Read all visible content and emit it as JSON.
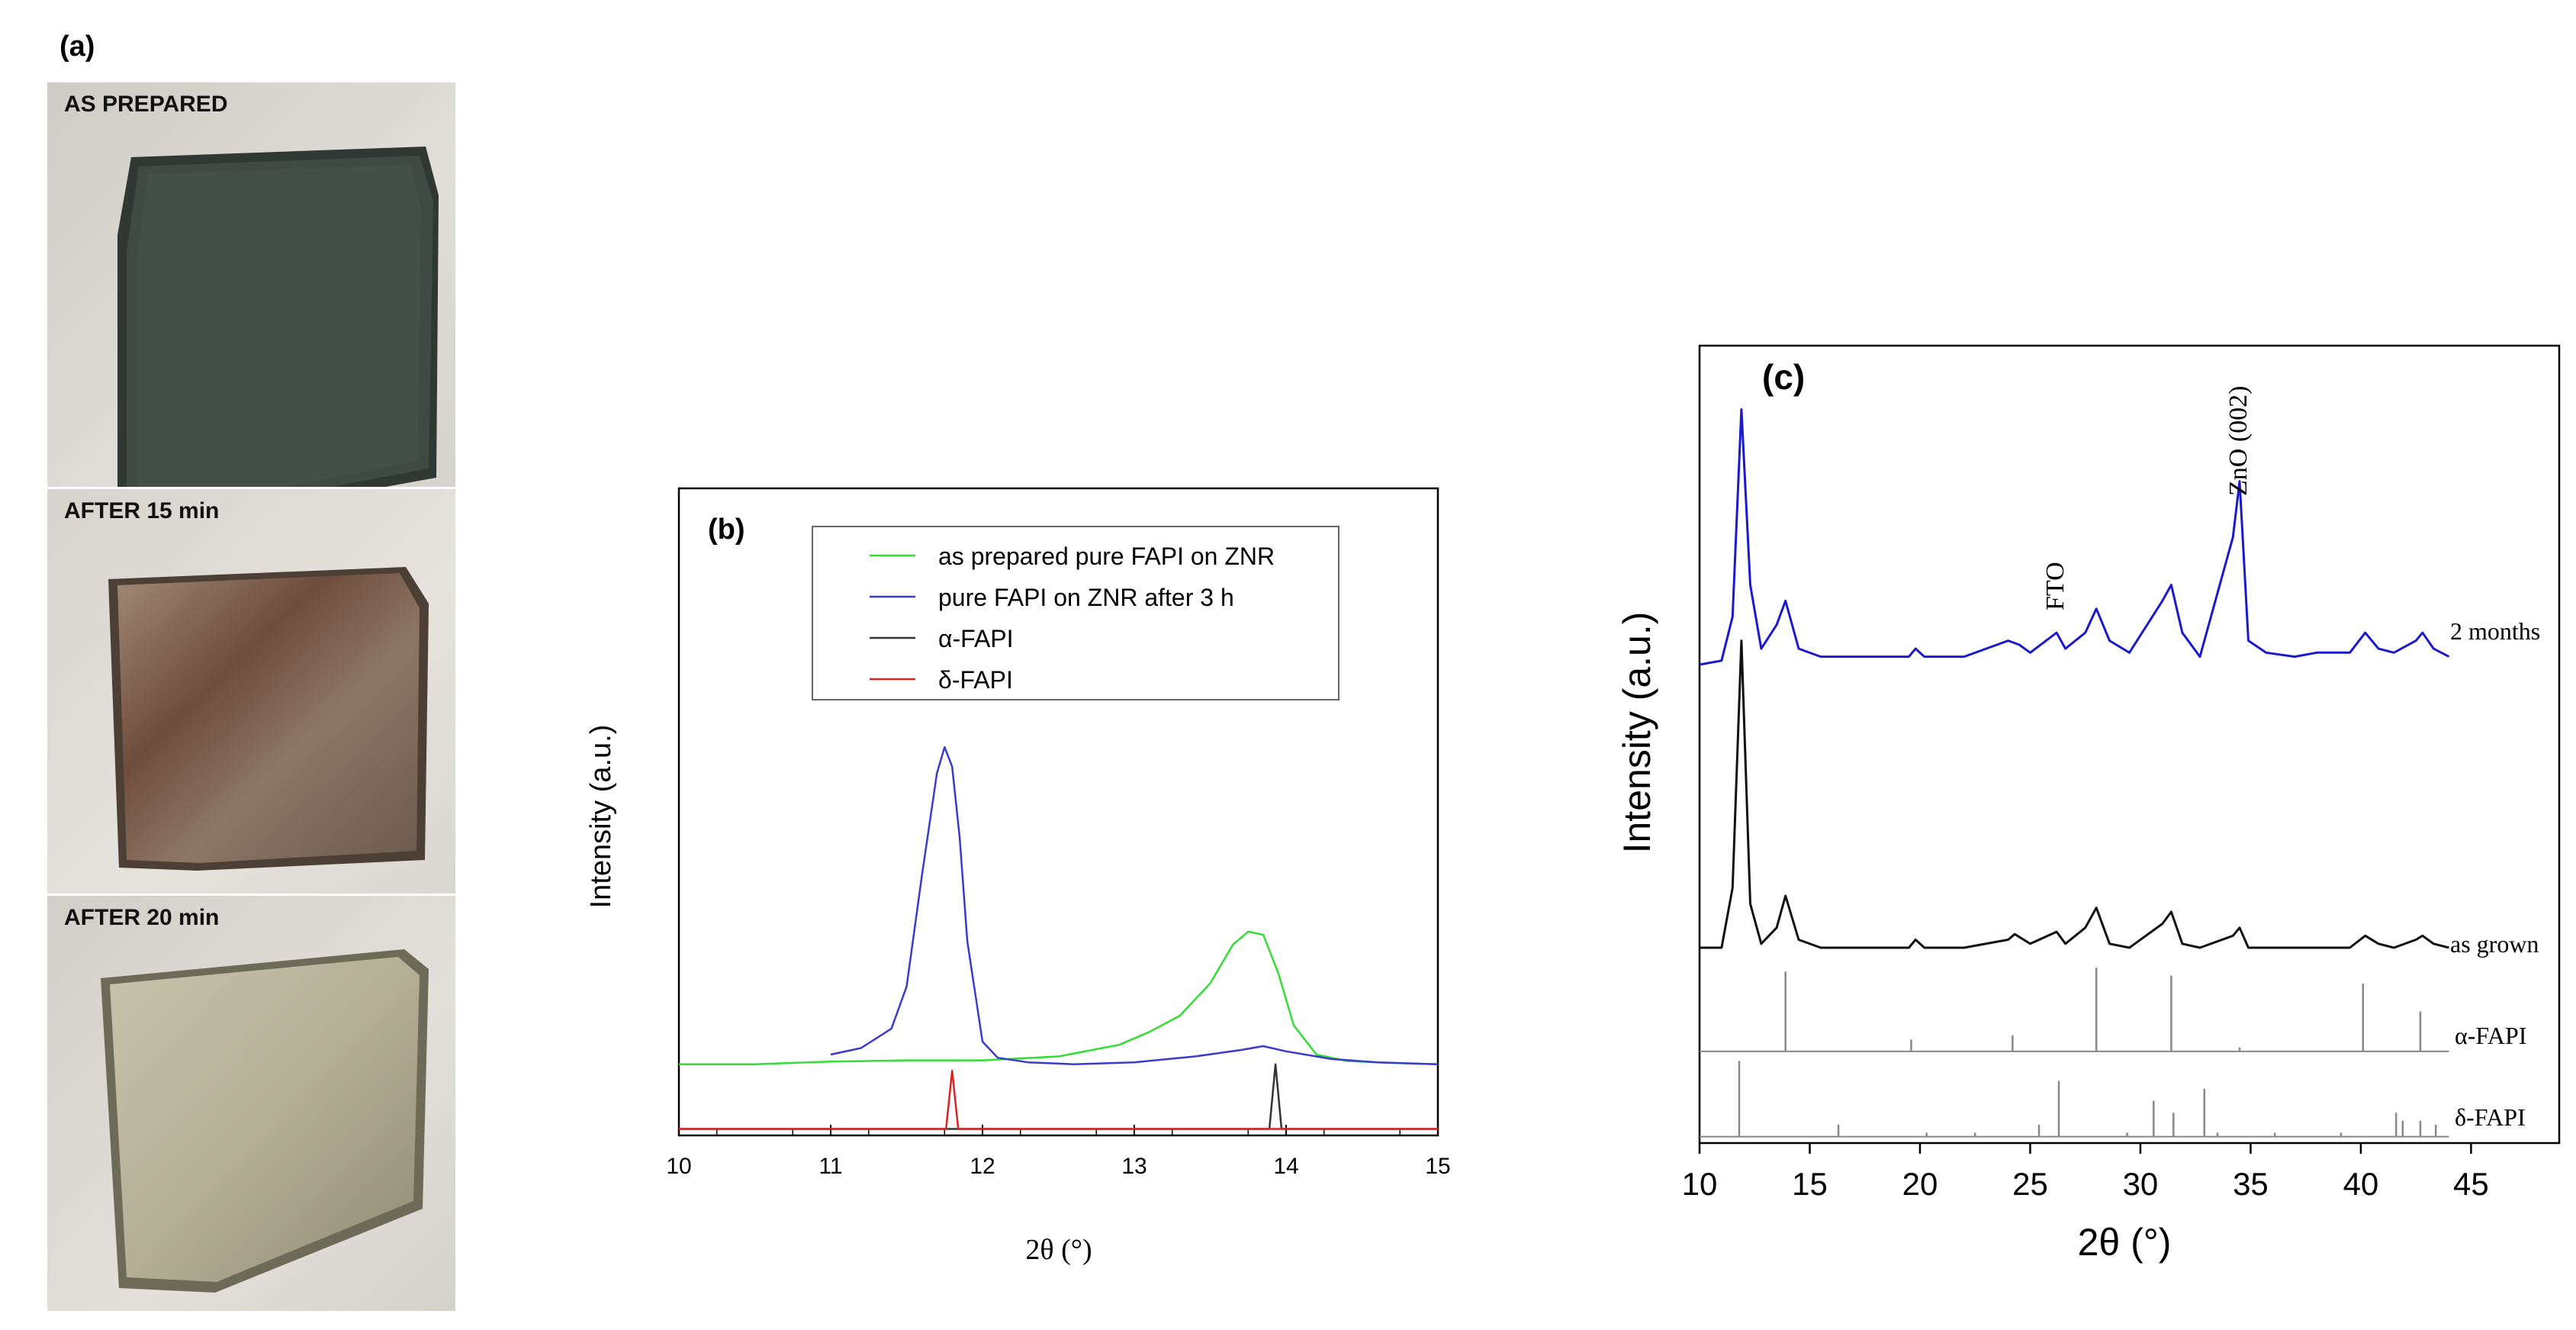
{
  "panel_a": {
    "label": "(a)",
    "photos": [
      {
        "caption": "AS PREPARED",
        "film_color": "#3f4a44"
      },
      {
        "caption": "AFTER 15 min",
        "film_color": "#8a6a55"
      },
      {
        "caption": "AFTER 20 min",
        "film_color": "#b8b49a"
      }
    ]
  },
  "chart_data": [
    {
      "panel": "(b)",
      "type": "line",
      "xlabel": "2θ (°)",
      "ylabel": "Intensity (a.u.)",
      "xlim": [
        10,
        15
      ],
      "xticks": [
        "10",
        "11",
        "12",
        "13",
        "14",
        "15"
      ],
      "ylim": [
        0,
        100
      ],
      "legend_position": "top-right",
      "colors": {
        "as_prepared": "#33dd33",
        "after_3h": "#3a3acc",
        "alpha": "#333333",
        "delta": "#dd2222"
      },
      "series": [
        {
          "name": "as prepared pure FAPI on ZNR",
          "color": "#33dd33",
          "x": [
            10,
            10.5,
            11,
            11.5,
            12,
            12.5,
            12.9,
            13.1,
            13.3,
            13.5,
            13.65,
            13.75,
            13.85,
            13.95,
            14.05,
            14.2,
            14.4,
            14.7,
            15
          ],
          "y": [
            11,
            11,
            11.4,
            11.6,
            11.6,
            12.2,
            14,
            16,
            18.5,
            23.5,
            29.5,
            31.5,
            31,
            25,
            17,
            12.5,
            11.5,
            11.2,
            11
          ]
        },
        {
          "name": "pure FAPI on ZNR after 3 h",
          "color": "#3a3acc",
          "x": [
            11,
            11.2,
            11.4,
            11.5,
            11.6,
            11.7,
            11.75,
            11.8,
            11.85,
            11.9,
            12,
            12.1,
            12.3,
            12.6,
            13,
            13.4,
            13.7,
            13.85,
            14,
            14.3,
            14.6,
            15
          ],
          "y": [
            12.5,
            13.5,
            16.5,
            23,
            40,
            56,
            60,
            57,
            46,
            30,
            14.5,
            12,
            11.3,
            11,
            11.3,
            12.2,
            13.2,
            13.8,
            13,
            11.8,
            11.3,
            11
          ]
        },
        {
          "name": "α-FAPI",
          "color": "#333333",
          "x": [
            10,
            13.89,
            13.93,
            13.97,
            15
          ],
          "y": [
            1,
            1,
            11,
            1,
            1
          ]
        },
        {
          "name": "δ-FAPI",
          "color": "#dd2222",
          "x": [
            10,
            11.76,
            11.8,
            11.84,
            15
          ],
          "y": [
            1,
            1,
            10,
            1,
            1
          ]
        }
      ]
    },
    {
      "panel": "(c)",
      "type": "line",
      "xlabel": "2θ (°)",
      "ylabel": "Intensity (a.u.)",
      "xlim": [
        10,
        49
      ],
      "xticks": [
        "10",
        "15",
        "20",
        "25",
        "30",
        "35",
        "40",
        "45"
      ],
      "ylim": [
        0,
        100
      ],
      "annotations": [
        {
          "text": "FTO",
          "x": 26.3
        },
        {
          "text": "ZnO (002)",
          "x": 34.4
        }
      ],
      "series": [
        {
          "name": "2 months",
          "color": "#1a1acc",
          "x": [
            10,
            11,
            11.5,
            11.9,
            12.3,
            12.8,
            13.5,
            13.9,
            14.5,
            15.5,
            17,
            19.5,
            19.8,
            20.2,
            22,
            24,
            24.5,
            25,
            26.2,
            26.6,
            27.5,
            28,
            28.6,
            29.5,
            31,
            31.4,
            31.9,
            32.7,
            34.2,
            34.5,
            34.9,
            35.7,
            37,
            38,
            39.5,
            40.2,
            40.8,
            41.5,
            42.5,
            42.8,
            43.3,
            44
          ],
          "y": [
            60,
            60.5,
            66,
            92,
            70,
            62,
            65,
            68,
            62,
            61,
            61,
            61,
            62,
            61,
            61,
            63,
            62.5,
            61.5,
            64,
            62,
            64,
            67,
            63,
            61.5,
            68,
            70,
            64,
            61,
            76,
            83,
            63,
            61.5,
            61,
            61.5,
            61.5,
            64,
            62,
            61.5,
            63,
            64,
            62,
            61
          ]
        },
        {
          "name": "as grown",
          "color": "#111111",
          "x": [
            10,
            11,
            11.5,
            11.9,
            12.3,
            12.8,
            13.5,
            13.9,
            14.5,
            15.5,
            17,
            19.5,
            19.8,
            20.2,
            22,
            24,
            24.3,
            25,
            26.2,
            26.6,
            27.5,
            28,
            28.6,
            29.5,
            31,
            31.4,
            31.9,
            32.7,
            34.2,
            34.5,
            34.9,
            36,
            38,
            39.5,
            40.2,
            40.8,
            41.5,
            42.5,
            42.8,
            43.3,
            44
          ],
          "y": [
            24.5,
            24.5,
            32,
            63,
            30,
            25,
            27,
            31,
            25.5,
            24.5,
            24.5,
            24.5,
            25.5,
            24.5,
            24.5,
            25.5,
            26.2,
            25,
            26.5,
            25,
            27,
            29.5,
            25,
            24.5,
            27.5,
            29,
            25,
            24.5,
            26,
            27,
            24.5,
            24.5,
            24.5,
            24.5,
            26,
            25,
            24.5,
            25.5,
            26,
            25,
            24.5
          ]
        },
        {
          "name": "α-FAPI",
          "color": "#888888",
          "baseline": 11.5,
          "sticks": [
            [
              13.9,
              10
            ],
            [
              19.6,
              1.5
            ],
            [
              24.2,
              2
            ],
            [
              28,
              10.5
            ],
            [
              31.4,
              9.5
            ],
            [
              34.5,
              0.5
            ],
            [
              40.1,
              8.5
            ],
            [
              42.7,
              5
            ]
          ]
        },
        {
          "name": "δ-FAPI",
          "color": "#888888",
          "baseline": 0.8,
          "sticks": [
            [
              11.8,
              9.5
            ],
            [
              16.3,
              1.5
            ],
            [
              20.3,
              0.5
            ],
            [
              22.5,
              0.5
            ],
            [
              25.4,
              1.5
            ],
            [
              26.3,
              7
            ],
            [
              29.4,
              0.5
            ],
            [
              30.6,
              4.5
            ],
            [
              31.5,
              3
            ],
            [
              32.9,
              6
            ],
            [
              33.5,
              0.5
            ],
            [
              36.1,
              0.5
            ],
            [
              39.1,
              0.5
            ],
            [
              41.6,
              3
            ],
            [
              41.9,
              2
            ],
            [
              42.7,
              2
            ],
            [
              43.4,
              1.5
            ]
          ]
        }
      ]
    }
  ]
}
